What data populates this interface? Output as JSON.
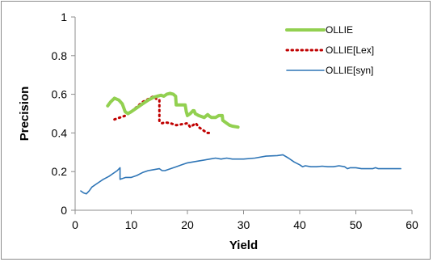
{
  "chart_data": {
    "type": "line",
    "title": "",
    "xlabel": "Yield",
    "ylabel": "Precision",
    "xlim": [
      0,
      60
    ],
    "ylim": [
      0,
      1
    ],
    "x_ticks": [
      "0",
      "10",
      "20",
      "30",
      "40",
      "50",
      "60"
    ],
    "y_ticks": [
      "0",
      "0.2",
      "0.4",
      "0.6",
      "0.8",
      "1"
    ],
    "x_tick_values": [
      0,
      10,
      20,
      30,
      40,
      50,
      60
    ],
    "y_tick_values": [
      0,
      0.2,
      0.4,
      0.6,
      0.8,
      1
    ],
    "grid": false,
    "legend_position": "top-right",
    "series": [
      {
        "name": "OLLIE",
        "color": "#92d050",
        "style": "solid-thick",
        "points": [
          [
            5.8,
            0.54
          ],
          [
            6.3,
            0.56
          ],
          [
            7.0,
            0.58
          ],
          [
            7.8,
            0.57
          ],
          [
            8.4,
            0.55
          ],
          [
            8.9,
            0.51
          ],
          [
            9.4,
            0.5
          ],
          [
            10.0,
            0.51
          ],
          [
            11.0,
            0.53
          ],
          [
            12.0,
            0.55
          ],
          [
            13.0,
            0.57
          ],
          [
            14.0,
            0.585
          ],
          [
            14.6,
            0.59
          ],
          [
            15.3,
            0.595
          ],
          [
            15.8,
            0.59
          ],
          [
            16.3,
            0.6
          ],
          [
            16.9,
            0.605
          ],
          [
            17.5,
            0.6
          ],
          [
            17.9,
            0.59
          ],
          [
            18.0,
            0.545
          ],
          [
            19.0,
            0.545
          ],
          [
            19.6,
            0.545
          ],
          [
            19.8,
            0.51
          ],
          [
            20.0,
            0.49
          ],
          [
            20.5,
            0.5
          ],
          [
            21.0,
            0.515
          ],
          [
            21.2,
            0.515
          ],
          [
            21.4,
            0.5
          ],
          [
            22.0,
            0.49
          ],
          [
            23.0,
            0.48
          ],
          [
            23.6,
            0.495
          ],
          [
            24.0,
            0.485
          ],
          [
            24.3,
            0.48
          ],
          [
            25.0,
            0.48
          ],
          [
            25.6,
            0.49
          ],
          [
            26.2,
            0.49
          ],
          [
            26.3,
            0.465
          ],
          [
            27.0,
            0.45
          ],
          [
            27.5,
            0.44
          ],
          [
            28.0,
            0.435
          ],
          [
            29.0,
            0.43
          ]
        ]
      },
      {
        "name": "OLLIE[Lex]",
        "color": "#c00000",
        "style": "dotted",
        "points": [
          [
            7.0,
            0.47
          ],
          [
            8.0,
            0.48
          ],
          [
            9.0,
            0.49
          ],
          [
            10.0,
            0.51
          ],
          [
            11.0,
            0.535
          ],
          [
            12.0,
            0.56
          ],
          [
            13.0,
            0.575
          ],
          [
            14.0,
            0.59
          ],
          [
            14.5,
            0.575
          ],
          [
            15.0,
            0.57
          ],
          [
            15.0,
            0.46
          ],
          [
            15.5,
            0.45
          ],
          [
            16.0,
            0.455
          ],
          [
            17.0,
            0.45
          ],
          [
            18.0,
            0.44
          ],
          [
            19.0,
            0.445
          ],
          [
            20.0,
            0.45
          ],
          [
            20.5,
            0.43
          ],
          [
            21.0,
            0.44
          ],
          [
            21.5,
            0.45
          ],
          [
            22.0,
            0.43
          ],
          [
            22.5,
            0.42
          ],
          [
            23.0,
            0.41
          ],
          [
            23.5,
            0.4
          ],
          [
            24.0,
            0.4
          ]
        ]
      },
      {
        "name": "OLLIE[syn]",
        "color": "#2e75b6",
        "style": "solid-thin",
        "points": [
          [
            1.0,
            0.1
          ],
          [
            1.5,
            0.09
          ],
          [
            2.0,
            0.085
          ],
          [
            2.5,
            0.1
          ],
          [
            3.0,
            0.12
          ],
          [
            4.0,
            0.14
          ],
          [
            5.0,
            0.16
          ],
          [
            6.0,
            0.175
          ],
          [
            7.0,
            0.195
          ],
          [
            7.5,
            0.205
          ],
          [
            8.0,
            0.22
          ],
          [
            8.0,
            0.16
          ],
          [
            9.0,
            0.17
          ],
          [
            10.0,
            0.17
          ],
          [
            11.0,
            0.18
          ],
          [
            12.0,
            0.195
          ],
          [
            13.0,
            0.205
          ],
          [
            14.0,
            0.21
          ],
          [
            15.0,
            0.215
          ],
          [
            15.5,
            0.205
          ],
          [
            16.0,
            0.205
          ],
          [
            17.0,
            0.215
          ],
          [
            18.0,
            0.225
          ],
          [
            19.0,
            0.235
          ],
          [
            20.0,
            0.245
          ],
          [
            22.0,
            0.255
          ],
          [
            24.0,
            0.265
          ],
          [
            25.0,
            0.27
          ],
          [
            26.0,
            0.265
          ],
          [
            27.0,
            0.27
          ],
          [
            28.0,
            0.265
          ],
          [
            30.0,
            0.265
          ],
          [
            32.0,
            0.27
          ],
          [
            34.0,
            0.28
          ],
          [
            36.0,
            0.283
          ],
          [
            37.0,
            0.287
          ],
          [
            38.0,
            0.27
          ],
          [
            39.0,
            0.25
          ],
          [
            40.0,
            0.235
          ],
          [
            40.5,
            0.225
          ],
          [
            41.0,
            0.23
          ],
          [
            42.0,
            0.225
          ],
          [
            43.0,
            0.225
          ],
          [
            44.0,
            0.228
          ],
          [
            45.0,
            0.225
          ],
          [
            46.0,
            0.225
          ],
          [
            47.0,
            0.23
          ],
          [
            48.0,
            0.225
          ],
          [
            48.5,
            0.215
          ],
          [
            49.0,
            0.22
          ],
          [
            50.0,
            0.22
          ],
          [
            51.0,
            0.215
          ],
          [
            52.0,
            0.215
          ],
          [
            53.0,
            0.215
          ],
          [
            53.5,
            0.22
          ],
          [
            54.0,
            0.215
          ],
          [
            55.0,
            0.215
          ],
          [
            56.0,
            0.215
          ],
          [
            57.0,
            0.215
          ],
          [
            58.0,
            0.215
          ]
        ]
      }
    ]
  }
}
